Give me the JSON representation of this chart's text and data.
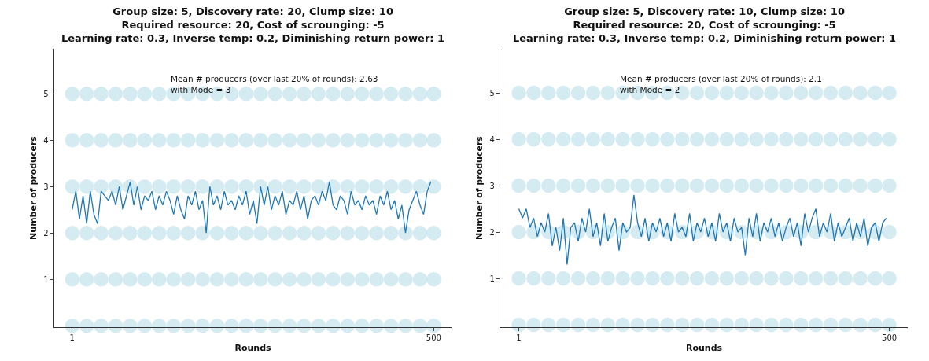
{
  "chart_data": [
    {
      "type": "line",
      "title": "Group size: 5, Discovery rate: 20, Clump size: 10\nRequired resource: 20, Cost of scrounging: -5\nLearning rate: 0.3, Inverse temp: 0.2, Diminishing return power: 1",
      "xlabel": "Rounds",
      "ylabel": "Number of producers",
      "annotations": [
        "Mean # producers (over last 20% of rounds): 2.63\nwith Mode = 3"
      ],
      "xlim": [
        -24,
        525
      ],
      "xticks": [
        1,
        500
      ],
      "ylim": [
        -0.03,
        5.97
      ],
      "yticks": [
        1,
        2,
        3,
        4,
        5
      ],
      "series": [
        {
          "type": "scatter",
          "marker": "circle",
          "color": "#add8e6",
          "x": [
            1,
            21,
            41,
            61,
            81,
            101,
            121,
            141,
            161,
            181,
            201,
            221,
            241,
            261,
            281,
            301,
            321,
            341,
            361,
            381,
            401,
            421,
            441,
            461,
            481,
            500
          ],
          "values": [
            0,
            0,
            0,
            0,
            0,
            0,
            0,
            0,
            0,
            0,
            0,
            0,
            0,
            0,
            0,
            0,
            0,
            0,
            0,
            0,
            0,
            0,
            0,
            0,
            0,
            0
          ]
        },
        {
          "type": "scatter",
          "marker": "circle",
          "color": "#add8e6",
          "x": [
            1,
            21,
            41,
            61,
            81,
            101,
            121,
            141,
            161,
            181,
            201,
            221,
            241,
            261,
            281,
            301,
            321,
            341,
            361,
            381,
            401,
            421,
            441,
            461,
            481,
            500
          ],
          "values": [
            1,
            1,
            1,
            1,
            1,
            1,
            1,
            1,
            1,
            1,
            1,
            1,
            1,
            1,
            1,
            1,
            1,
            1,
            1,
            1,
            1,
            1,
            1,
            1,
            1,
            1
          ]
        },
        {
          "type": "scatter",
          "marker": "circle",
          "color": "#add8e6",
          "x": [
            1,
            21,
            41,
            61,
            81,
            101,
            121,
            141,
            161,
            181,
            201,
            221,
            241,
            261,
            281,
            301,
            321,
            341,
            361,
            381,
            401,
            421,
            441,
            461,
            481,
            500
          ],
          "values": [
            2,
            2,
            2,
            2,
            2,
            2,
            2,
            2,
            2,
            2,
            2,
            2,
            2,
            2,
            2,
            2,
            2,
            2,
            2,
            2,
            2,
            2,
            2,
            2,
            2,
            2
          ]
        },
        {
          "type": "scatter",
          "marker": "circle",
          "color": "#add8e6",
          "x": [
            1,
            21,
            41,
            61,
            81,
            101,
            121,
            141,
            161,
            181,
            201,
            221,
            241,
            261,
            281,
            301,
            321,
            341,
            361,
            381,
            401,
            421,
            441,
            461,
            481,
            500
          ],
          "values": [
            3,
            3,
            3,
            3,
            3,
            3,
            3,
            3,
            3,
            3,
            3,
            3,
            3,
            3,
            3,
            3,
            3,
            3,
            3,
            3,
            3,
            3,
            3,
            3,
            3,
            3
          ]
        },
        {
          "type": "scatter",
          "marker": "circle",
          "color": "#add8e6",
          "x": [
            1,
            21,
            41,
            61,
            81,
            101,
            121,
            141,
            161,
            181,
            201,
            221,
            241,
            261,
            281,
            301,
            321,
            341,
            361,
            381,
            401,
            421,
            441,
            461,
            481,
            500
          ],
          "values": [
            4,
            4,
            4,
            4,
            4,
            4,
            4,
            4,
            4,
            4,
            4,
            4,
            4,
            4,
            4,
            4,
            4,
            4,
            4,
            4,
            4,
            4,
            4,
            4,
            4,
            4
          ]
        },
        {
          "type": "scatter",
          "marker": "circle",
          "color": "#add8e6",
          "x": [
            1,
            21,
            41,
            61,
            81,
            101,
            121,
            141,
            161,
            181,
            201,
            221,
            241,
            261,
            281,
            301,
            321,
            341,
            361,
            381,
            401,
            421,
            441,
            461,
            481,
            500
          ],
          "values": [
            5,
            5,
            5,
            5,
            5,
            5,
            5,
            5,
            5,
            5,
            5,
            5,
            5,
            5,
            5,
            5,
            5,
            5,
            5,
            5,
            5,
            5,
            5,
            5,
            5,
            5
          ]
        },
        {
          "marker": "none",
          "color": "#1f77b4",
          "x": [
            1,
            6,
            11,
            16,
            21,
            26,
            31,
            36,
            41,
            46,
            51,
            56,
            61,
            66,
            71,
            76,
            81,
            86,
            91,
            96,
            101,
            106,
            111,
            116,
            121,
            126,
            131,
            136,
            141,
            146,
            151,
            156,
            161,
            166,
            171,
            176,
            181,
            186,
            191,
            196,
            201,
            206,
            211,
            216,
            221,
            226,
            231,
            236,
            241,
            246,
            251,
            256,
            261,
            266,
            271,
            276,
            281,
            286,
            291,
            296,
            301,
            306,
            311,
            316,
            321,
            326,
            331,
            336,
            341,
            346,
            351,
            356,
            361,
            366,
            371,
            376,
            381,
            386,
            391,
            396,
            401,
            406,
            411,
            416,
            421,
            426,
            431,
            436,
            441,
            446,
            451,
            456,
            461,
            466,
            471,
            476,
            481,
            486,
            491,
            496
          ],
          "values": [
            2.5,
            2.9,
            2.3,
            2.8,
            2.2,
            2.9,
            2.4,
            2.2,
            2.9,
            2.8,
            2.7,
            2.9,
            2.6,
            3.0,
            2.5,
            2.8,
            3.1,
            2.6,
            3.0,
            2.5,
            2.8,
            2.7,
            2.9,
            2.5,
            2.8,
            2.6,
            2.9,
            2.7,
            2.4,
            2.8,
            2.5,
            2.3,
            2.8,
            2.6,
            2.9,
            2.5,
            2.7,
            2.0,
            3.0,
            2.6,
            2.8,
            2.5,
            2.9,
            2.6,
            2.7,
            2.5,
            2.8,
            2.6,
            2.9,
            2.4,
            2.7,
            2.2,
            3.0,
            2.6,
            3.0,
            2.5,
            2.8,
            2.6,
            2.9,
            2.4,
            2.7,
            2.6,
            2.9,
            2.5,
            2.8,
            2.3,
            2.7,
            2.8,
            2.6,
            2.9,
            2.7,
            3.1,
            2.6,
            2.5,
            2.8,
            2.7,
            2.4,
            2.9,
            2.6,
            2.7,
            2.5,
            2.8,
            2.6,
            2.7,
            2.4,
            2.8,
            2.6,
            2.9,
            2.5,
            2.7,
            2.3,
            2.6,
            2.0,
            2.5,
            2.7,
            2.9,
            2.6,
            2.4,
            2.9,
            3.1
          ]
        }
      ]
    },
    {
      "type": "line",
      "title": "Group size: 5, Discovery rate: 10, Clump size: 10\nRequired resource: 20, Cost of scrounging: -5\nLearning rate: 0.3, Inverse temp: 0.2, Diminishing return power: 1",
      "xlabel": "Rounds",
      "ylabel": "Number of producers",
      "annotations": [
        "Mean # producers (over last 20% of rounds): 2.1\nwith Mode = 2"
      ],
      "xlim": [
        -24,
        525
      ],
      "xticks": [
        1,
        500
      ],
      "ylim": [
        -0.05,
        5.95
      ],
      "yticks": [
        1,
        2,
        3,
        4,
        5
      ],
      "series": [
        {
          "type": "scatter",
          "marker": "circle",
          "color": "#add8e6",
          "x": [
            1,
            21,
            41,
            61,
            81,
            101,
            121,
            141,
            161,
            181,
            201,
            221,
            241,
            261,
            281,
            301,
            321,
            341,
            361,
            381,
            401,
            421,
            441,
            461,
            481,
            500
          ],
          "values": [
            0,
            0,
            0,
            0,
            0,
            0,
            0,
            0,
            0,
            0,
            0,
            0,
            0,
            0,
            0,
            0,
            0,
            0,
            0,
            0,
            0,
            0,
            0,
            0,
            0,
            0
          ]
        },
        {
          "type": "scatter",
          "marker": "circle",
          "color": "#add8e6",
          "x": [
            1,
            21,
            41,
            61,
            81,
            101,
            121,
            141,
            161,
            181,
            201,
            221,
            241,
            261,
            281,
            301,
            321,
            341,
            361,
            381,
            401,
            421,
            441,
            461,
            481,
            500
          ],
          "values": [
            1,
            1,
            1,
            1,
            1,
            1,
            1,
            1,
            1,
            1,
            1,
            1,
            1,
            1,
            1,
            1,
            1,
            1,
            1,
            1,
            1,
            1,
            1,
            1,
            1,
            1
          ]
        },
        {
          "type": "scatter",
          "marker": "circle",
          "color": "#add8e6",
          "x": [
            1,
            21,
            41,
            61,
            81,
            101,
            121,
            141,
            161,
            181,
            201,
            221,
            241,
            261,
            281,
            301,
            321,
            341,
            361,
            381,
            401,
            421,
            441,
            461,
            481,
            500
          ],
          "values": [
            2,
            2,
            2,
            2,
            2,
            2,
            2,
            2,
            2,
            2,
            2,
            2,
            2,
            2,
            2,
            2,
            2,
            2,
            2,
            2,
            2,
            2,
            2,
            2,
            2,
            2
          ]
        },
        {
          "type": "scatter",
          "marker": "circle",
          "color": "#add8e6",
          "x": [
            1,
            21,
            41,
            61,
            81,
            101,
            121,
            141,
            161,
            181,
            201,
            221,
            241,
            261,
            281,
            301,
            321,
            341,
            361,
            381,
            401,
            421,
            441,
            461,
            481,
            500
          ],
          "values": [
            3,
            3,
            3,
            3,
            3,
            3,
            3,
            3,
            3,
            3,
            3,
            3,
            3,
            3,
            3,
            3,
            3,
            3,
            3,
            3,
            3,
            3,
            3,
            3,
            3,
            3
          ]
        },
        {
          "type": "scatter",
          "marker": "circle",
          "color": "#add8e6",
          "x": [
            1,
            21,
            41,
            61,
            81,
            101,
            121,
            141,
            161,
            181,
            201,
            221,
            241,
            261,
            281,
            301,
            321,
            341,
            361,
            381,
            401,
            421,
            441,
            461,
            481,
            500
          ],
          "values": [
            4,
            4,
            4,
            4,
            4,
            4,
            4,
            4,
            4,
            4,
            4,
            4,
            4,
            4,
            4,
            4,
            4,
            4,
            4,
            4,
            4,
            4,
            4,
            4,
            4,
            4
          ]
        },
        {
          "type": "scatter",
          "marker": "circle",
          "color": "#add8e6",
          "x": [
            1,
            21,
            41,
            61,
            81,
            101,
            121,
            141,
            161,
            181,
            201,
            221,
            241,
            261,
            281,
            301,
            321,
            341,
            361,
            381,
            401,
            421,
            441,
            461,
            481,
            500
          ],
          "values": [
            5,
            5,
            5,
            5,
            5,
            5,
            5,
            5,
            5,
            5,
            5,
            5,
            5,
            5,
            5,
            5,
            5,
            5,
            5,
            5,
            5,
            5,
            5,
            5,
            5,
            5
          ]
        },
        {
          "marker": "none",
          "color": "#1f77b4",
          "x": [
            1,
            6,
            11,
            16,
            21,
            26,
            31,
            36,
            41,
            46,
            51,
            56,
            61,
            66,
            71,
            76,
            81,
            86,
            91,
            96,
            101,
            106,
            111,
            116,
            121,
            126,
            131,
            136,
            141,
            146,
            151,
            156,
            161,
            166,
            171,
            176,
            181,
            186,
            191,
            196,
            201,
            206,
            211,
            216,
            221,
            226,
            231,
            236,
            241,
            246,
            251,
            256,
            261,
            266,
            271,
            276,
            281,
            286,
            291,
            296,
            301,
            306,
            311,
            316,
            321,
            326,
            331,
            336,
            341,
            346,
            351,
            356,
            361,
            366,
            371,
            376,
            381,
            386,
            391,
            396,
            401,
            406,
            411,
            416,
            421,
            426,
            431,
            436,
            441,
            446,
            451,
            456,
            461,
            466,
            471,
            476,
            481,
            486,
            491,
            496
          ],
          "values": [
            2.5,
            2.3,
            2.5,
            2.1,
            2.3,
            1.9,
            2.2,
            2.0,
            2.4,
            1.7,
            2.1,
            1.6,
            2.3,
            1.3,
            2.1,
            2.2,
            1.8,
            2.3,
            2.0,
            2.5,
            1.9,
            2.2,
            1.7,
            2.4,
            1.8,
            2.1,
            2.3,
            1.6,
            2.2,
            2.0,
            2.1,
            2.8,
            2.2,
            1.9,
            2.3,
            1.8,
            2.2,
            2.0,
            2.3,
            1.9,
            2.2,
            1.8,
            2.4,
            2.0,
            2.1,
            1.9,
            2.4,
            1.8,
            2.2,
            2.0,
            2.3,
            1.9,
            2.2,
            1.8,
            2.4,
            2.0,
            2.2,
            1.8,
            2.3,
            2.0,
            2.1,
            1.5,
            2.3,
            1.9,
            2.4,
            1.8,
            2.2,
            2.0,
            2.3,
            1.9,
            2.2,
            1.8,
            2.1,
            2.3,
            1.9,
            2.2,
            1.7,
            2.4,
            2.0,
            2.3,
            2.5,
            1.9,
            2.2,
            2.0,
            2.4,
            1.8,
            2.2,
            1.9,
            2.1,
            2.3,
            1.8,
            2.2,
            1.9,
            2.3,
            1.7,
            2.1,
            2.2,
            1.8,
            2.2,
            2.3
          ]
        }
      ]
    }
  ]
}
